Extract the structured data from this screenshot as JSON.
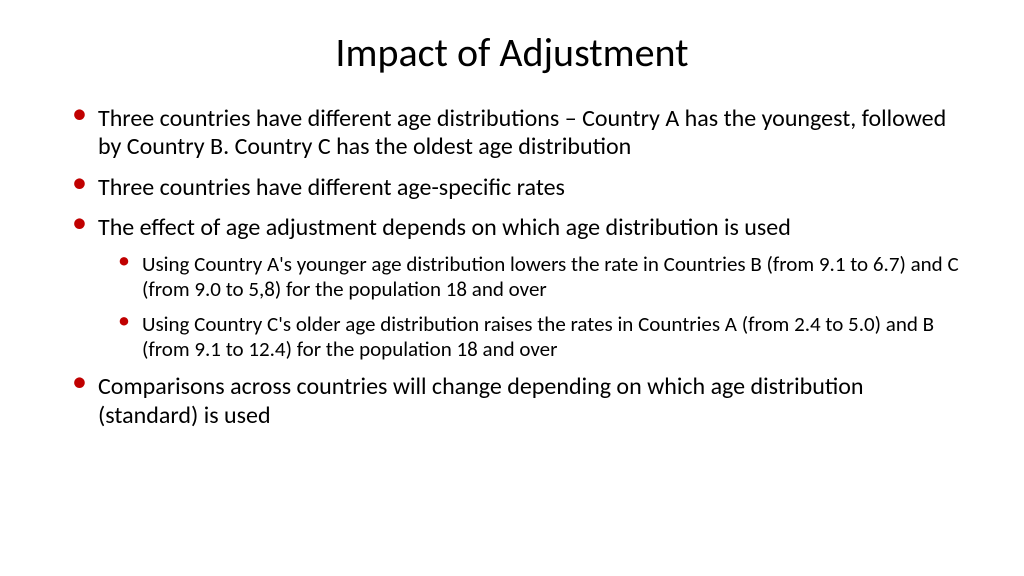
{
  "slide": {
    "title": "Impact of Adjustment",
    "bullets": [
      {
        "text": "Three countries have different age distributions – Country A has the youngest, followed by Country B. Country C has the oldest age distribution"
      },
      {
        "text": "Three countries have different age-specific rates"
      },
      {
        "text": "The effect of age adjustment depends on which age distribution is used",
        "sub": [
          "Using Country A's younger age distribution lowers the rate in Countries B (from 9.1 to 6.7) and C (from 9.0 to 5,8) for the population 18 and over",
          "Using Country C's older age distribution raises the rates in Countries A (from 2.4 to 5.0) and B (from 9.1 to 12.4) for the population 18 and over"
        ]
      },
      {
        "text": "Comparisons across countries will change depending on which age distribution (standard) is used"
      }
    ],
    "colors": {
      "bullet_color": "#c00000",
      "text_color": "#000000",
      "background": "#ffffff"
    },
    "typography": {
      "title_fontsize": 40,
      "body_fontsize": 24,
      "sub_fontsize": 21,
      "font_family": "Calibri"
    }
  }
}
